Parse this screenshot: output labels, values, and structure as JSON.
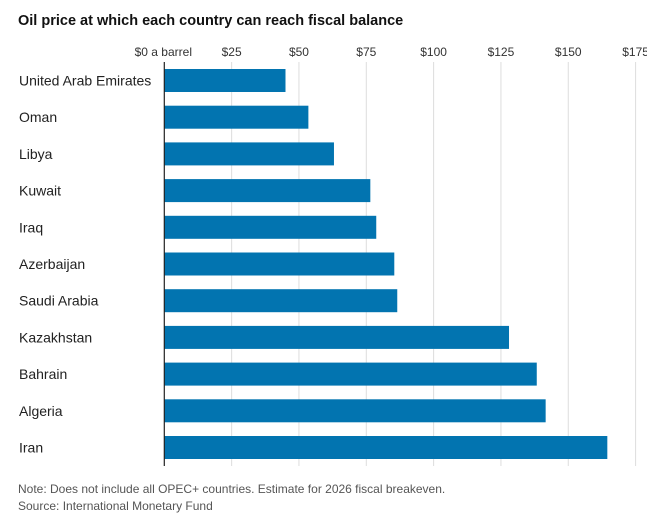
{
  "chart_data": {
    "type": "bar",
    "orientation": "horizontal",
    "title": "Oil price at which each country can reach fiscal balance",
    "categories": [
      "United Arab Emirates",
      "Oman",
      "Libya",
      "Kuwait",
      "Iraq",
      "Azerbaijan",
      "Saudi Arabia",
      "Kazakhstan",
      "Bahrain",
      "Algeria",
      "Iran"
    ],
    "values": [
      45,
      53.5,
      63,
      76.5,
      78.7,
      85.4,
      86.5,
      128,
      138.3,
      141.6,
      164.5
    ],
    "xlim": [
      0,
      175
    ],
    "xticks": [
      0,
      25,
      50,
      75,
      100,
      125,
      150,
      175
    ],
    "xtick_labels": [
      "$0 a barrel",
      "$25",
      "$50",
      "$75",
      "$100",
      "$125",
      "$150",
      "$175"
    ],
    "xaxis_position": "top",
    "grid": true,
    "bar_color": "#0274b0",
    "grid_color": "#dddddd"
  },
  "footer": {
    "note": "Note: Does not include all OPEC+ countries. Estimate for 2026 fiscal breakeven.",
    "source": "Source: International Monetary Fund"
  }
}
